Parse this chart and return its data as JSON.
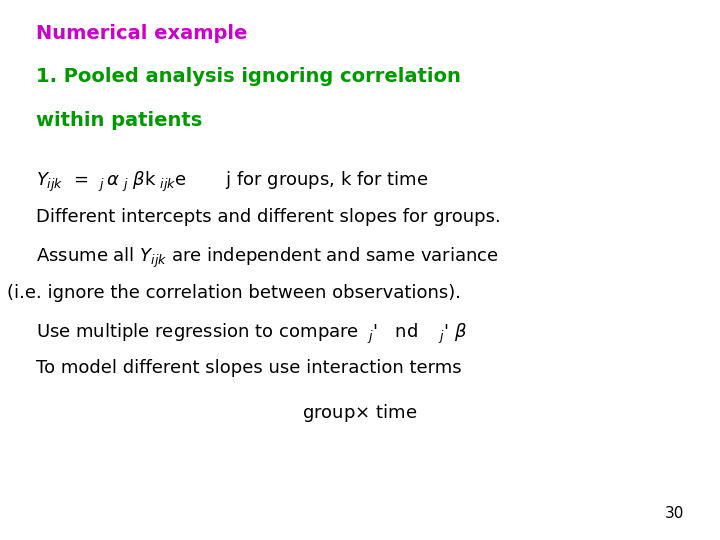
{
  "background_color": "#ffffff",
  "title_line1": "Numerical example",
  "title_line2": "1. Pooled analysis ignoring correlation",
  "title_line3": "within patients",
  "title_color": "#cc00cc",
  "title2_color": "#009900",
  "body_color": "#000000",
  "page_number": "30",
  "fig_width": 7.2,
  "fig_height": 5.4,
  "dpi": 100,
  "title_fontsize": 15,
  "body_fontsize": 13
}
